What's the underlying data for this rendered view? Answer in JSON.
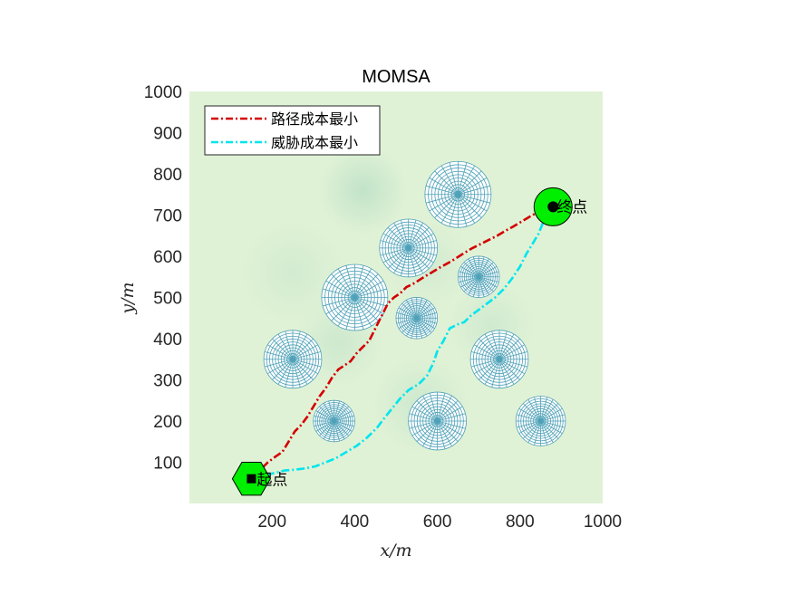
{
  "chart_data": {
    "type": "line",
    "title": "MOMSA",
    "xlabel": "x/m",
    "ylabel": "y/m",
    "xlim": [
      0,
      1000
    ],
    "ylim": [
      0,
      1000
    ],
    "xticks": [
      200,
      400,
      600,
      800,
      1000
    ],
    "yticks": [
      100,
      200,
      300,
      400,
      500,
      600,
      700,
      800,
      900,
      1000
    ],
    "grid": false,
    "legend_position": "top-left",
    "background": "terrain heatmap (light green)",
    "series": [
      {
        "name": "路径成本最小",
        "color": "#d40000",
        "style": "dash-dot",
        "x": [
          150,
          160,
          175,
          190,
          210,
          225,
          240,
          255,
          270,
          285,
          300,
          315,
          330,
          345,
          360,
          375,
          390,
          405,
          420,
          435,
          450,
          465,
          480,
          495,
          510,
          525,
          545,
          565,
          585,
          605,
          625,
          645,
          665,
          685,
          705,
          725,
          745,
          765,
          785,
          805,
          825,
          845,
          865,
          880
        ],
        "y": [
          60,
          70,
          85,
          100,
          115,
          125,
          150,
          175,
          190,
          210,
          235,
          260,
          280,
          305,
          325,
          335,
          345,
          365,
          380,
          395,
          425,
          455,
          485,
          500,
          510,
          525,
          535,
          548,
          560,
          572,
          583,
          595,
          608,
          620,
          630,
          640,
          650,
          662,
          673,
          685,
          697,
          708,
          712,
          720
        ]
      },
      {
        "name": "威胁成本最小",
        "color": "#00e5ee",
        "style": "dash-dot",
        "x": [
          150,
          170,
          190,
          210,
          230,
          255,
          280,
          305,
          330,
          355,
          380,
          405,
          430,
          455,
          470,
          490,
          510,
          530,
          555,
          575,
          590,
          600,
          615,
          630,
          650,
          665,
          680,
          700,
          720,
          740,
          760,
          780,
          800,
          815,
          830,
          845,
          855,
          865,
          875,
          880
        ],
        "y": [
          60,
          65,
          70,
          75,
          80,
          82,
          85,
          90,
          100,
          110,
          125,
          140,
          160,
          185,
          205,
          230,
          255,
          275,
          290,
          310,
          340,
          370,
          395,
          425,
          435,
          440,
          455,
          470,
          485,
          500,
          520,
          545,
          575,
          605,
          630,
          655,
          680,
          700,
          715,
          720
        ]
      }
    ],
    "threats": [
      {
        "x": 250,
        "y": 350,
        "r": 70
      },
      {
        "x": 350,
        "y": 200,
        "r": 50
      },
      {
        "x": 400,
        "y": 500,
        "r": 80
      },
      {
        "x": 530,
        "y": 620,
        "r": 70
      },
      {
        "x": 550,
        "y": 450,
        "r": 50
      },
      {
        "x": 600,
        "y": 200,
        "r": 70
      },
      {
        "x": 650,
        "y": 750,
        "r": 80
      },
      {
        "x": 700,
        "y": 550,
        "r": 50
      },
      {
        "x": 750,
        "y": 350,
        "r": 70
      },
      {
        "x": 850,
        "y": 200,
        "r": 60
      }
    ],
    "terrain_blobs": [
      {
        "x": 420,
        "y": 760,
        "r": 110,
        "opacity": 0.55
      },
      {
        "x": 560,
        "y": 240,
        "r": 120,
        "opacity": 0.35
      },
      {
        "x": 360,
        "y": 390,
        "r": 110,
        "opacity": 0.35
      },
      {
        "x": 250,
        "y": 560,
        "r": 130,
        "opacity": 0.25
      },
      {
        "x": 730,
        "y": 430,
        "r": 110,
        "opacity": 0.3
      },
      {
        "x": 580,
        "y": 580,
        "r": 110,
        "opacity": 0.25
      }
    ],
    "start": {
      "x": 150,
      "y": 60,
      "label": "起点"
    },
    "goal": {
      "x": 880,
      "y": 720,
      "label": "终点"
    },
    "colors": {
      "background": "#e0f2d6",
      "threat_mesh": "#4ea1b8",
      "marker_fill": "#00ee00",
      "marker_edge": "#000000"
    }
  }
}
